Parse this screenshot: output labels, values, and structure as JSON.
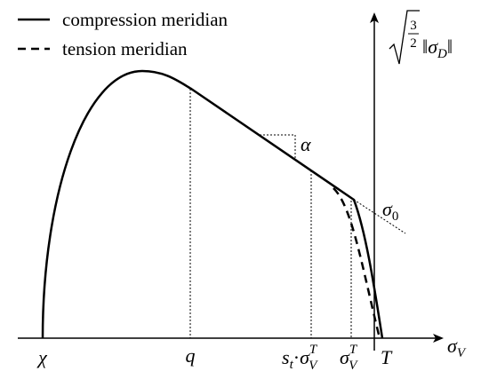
{
  "legend": [
    "compression meridian",
    "tension meridian"
  ],
  "x_axis_label": {
    "symbol": "σ",
    "sub": "V"
  },
  "y_axis_label": {
    "num": "3",
    "den": "2",
    "norm_left": "‖",
    "symbol": "σ",
    "sub": "D",
    "norm_right": "‖"
  },
  "points": {
    "chi": "χ",
    "q": "q",
    "st_sigma": {
      "s": "s",
      "s_sub": "t",
      "dot": "·",
      "symbol": "σ",
      "sup": "T",
      "sub": "V"
    },
    "sigma_vt": {
      "symbol": "σ",
      "sup": "T",
      "sub": "V"
    },
    "T": "T",
    "alpha": "α",
    "sigma0": {
      "symbol": "σ",
      "sub": "0"
    }
  }
}
